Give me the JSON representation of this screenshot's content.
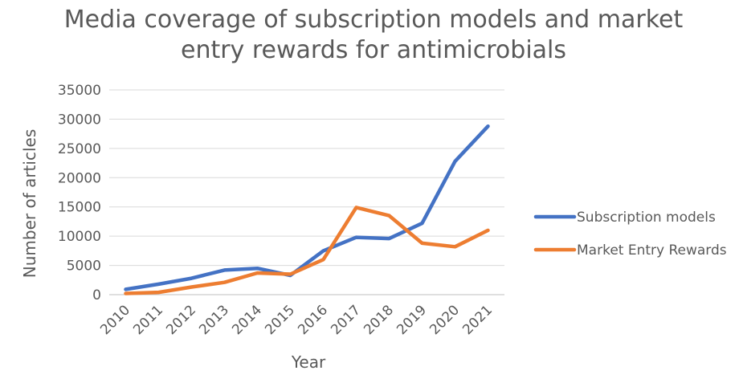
{
  "chart_data": {
    "type": "line",
    "title_lines": [
      "Media coverage of subscription models and market",
      "entry rewards for antimicrobials"
    ],
    "xlabel": "Year",
    "ylabel": "Number of articles",
    "categories": [
      "2010",
      "2011",
      "2012",
      "2013",
      "2014",
      "2015",
      "2016",
      "2017",
      "2018",
      "2019",
      "2020",
      "2021"
    ],
    "ylim": [
      0,
      35000
    ],
    "yticks": [
      "0",
      "5000",
      "10000",
      "15000",
      "20000",
      "25000",
      "30000",
      "35000"
    ],
    "grid": true,
    "legend_position": "right",
    "series": [
      {
        "name": "Subscription models",
        "color": "#4472C4",
        "values": [
          900,
          1800,
          2800,
          4200,
          4500,
          3300,
          7500,
          9800,
          9600,
          12200,
          22800,
          28800
        ]
      },
      {
        "name": "Market Entry Rewards",
        "color": "#ED7D31",
        "values": [
          200,
          400,
          1300,
          2100,
          3700,
          3500,
          6000,
          14900,
          13500,
          8800,
          8200,
          11000
        ]
      }
    ]
  }
}
